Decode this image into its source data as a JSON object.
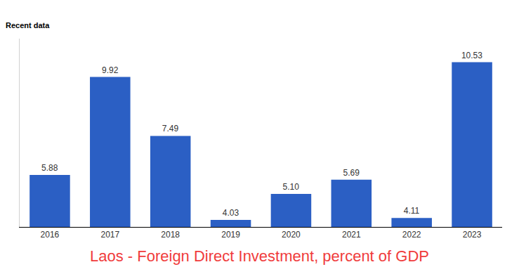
{
  "chart_data": {
    "type": "bar",
    "title": "Laos - Foreign Direct Investment, percent of GDP",
    "subtitle": "Recent data",
    "categories": [
      "2016",
      "2017",
      "2018",
      "2019",
      "2020",
      "2021",
      "2022",
      "2023"
    ],
    "values": [
      5.88,
      9.92,
      7.49,
      4.03,
      5.1,
      5.69,
      4.11,
      10.53
    ],
    "value_labels": [
      "5.88",
      "9.92",
      "7.49",
      "4.03",
      "5.10",
      "5.69",
      "4.11",
      "10.53"
    ],
    "color": "#2b5fc4",
    "ylim": [
      3.74,
      11.5
    ],
    "grid": false,
    "data_labels": true,
    "tick_labels": "x"
  }
}
